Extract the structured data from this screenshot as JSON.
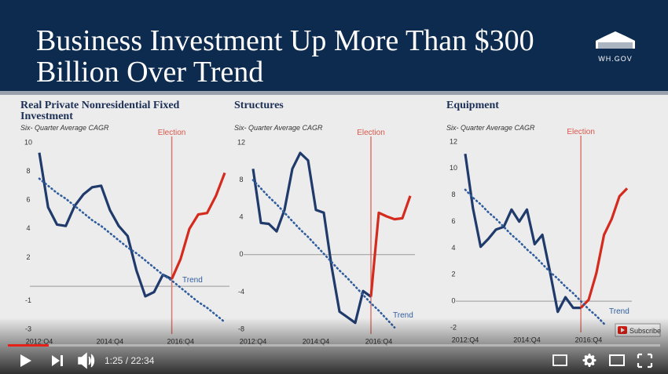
{
  "title": [
    "Business Investment Up More Than $300",
    "Billion Over Trend"
  ],
  "logo": "WH.GOV",
  "chart_data": [
    {
      "type": "line",
      "title": "Real Private Nonresidential Fixed Investment",
      "subtitle": "Six- Quarter Average CAGR",
      "categories": [
        "2012:Q4",
        null,
        null,
        null,
        null,
        null,
        null,
        null,
        "2014:Q4",
        null,
        null,
        null,
        null,
        null,
        null,
        null,
        "2016:Q4",
        null,
        null,
        null,
        null,
        null
      ],
      "ylim": [
        -3,
        10
      ],
      "yticks": [
        10,
        8,
        6,
        4,
        2,
        -1,
        -3
      ],
      "series": [
        {
          "color": "#1f3a6b",
          "values": [
            9.3,
            5.5,
            4.3,
            4.2,
            5.6,
            6.4,
            6.9,
            7.0,
            5.3,
            4.2,
            3.5,
            1.1,
            -0.7,
            -0.4,
            0.8,
            0.5,
            null,
            null,
            null,
            null,
            null,
            null
          ]
        },
        {
          "color": "#d42b1e",
          "values": [
            null,
            null,
            null,
            null,
            null,
            null,
            null,
            null,
            null,
            null,
            null,
            null,
            null,
            null,
            null,
            0.5,
            1.9,
            4.0,
            5.0,
            5.1,
            6.3,
            7.9
          ]
        },
        {
          "color": "#2f5d9e",
          "dotted": true,
          "values": [
            7.5,
            7.0,
            6.5,
            6.1,
            5.6,
            5.1,
            4.6,
            4.2,
            3.7,
            3.2,
            2.7,
            2.3,
            1.8,
            1.3,
            0.8,
            0.4,
            -0.1,
            -0.6,
            -1.1,
            -1.5,
            -2.0,
            -2.5
          ]
        }
      ],
      "election": {
        "label": "Election",
        "index": 15
      },
      "trend_label": "Trend"
    },
    {
      "type": "line",
      "title": "Structures",
      "subtitle": "Six- Quarter Average CAGR",
      "categories": [
        "2012:Q4",
        null,
        null,
        null,
        null,
        null,
        null,
        null,
        "2014:Q4",
        null,
        null,
        null,
        null,
        null,
        null,
        null,
        "2016:Q4",
        null,
        null,
        null,
        null
      ],
      "ylim": [
        -8,
        12
      ],
      "yticks": [
        12,
        8,
        4,
        0,
        -4,
        -8
      ],
      "series": [
        {
          "color": "#1f3a6b",
          "values": [
            9.2,
            3.4,
            3.3,
            2.5,
            4.8,
            9.2,
            10.9,
            10.1,
            4.8,
            4.5,
            -1.3,
            -6.1,
            -6.7,
            -7.3,
            -3.9,
            -4.5,
            null,
            null,
            null,
            null,
            null
          ]
        },
        {
          "color": "#d42b1e",
          "values": [
            null,
            null,
            null,
            null,
            null,
            null,
            null,
            null,
            null,
            null,
            null,
            null,
            null,
            null,
            null,
            -4.5,
            4.5,
            4.1,
            3.8,
            3.9,
            6.3
          ]
        },
        {
          "color": "#2f5d9e",
          "dotted": true,
          "values": [
            8,
            7.1,
            6.2,
            5.4,
            4.5,
            3.6,
            2.7,
            1.9,
            1.0,
            0.1,
            -0.8,
            -1.7,
            -2.5,
            -3.4,
            -4.3,
            -5.2,
            -6.0,
            -6.9,
            -7.8,
            null,
            null
          ]
        }
      ],
      "election": {
        "label": "Election",
        "index": 15
      },
      "trend_label": "Trend"
    },
    {
      "type": "line",
      "title": "Equipment",
      "subtitle": "Six- Quarter Average CAGR",
      "categories": [
        "2012:Q4",
        null,
        null,
        null,
        null,
        null,
        null,
        null,
        "2014:Q4",
        null,
        null,
        null,
        null,
        null,
        null,
        null,
        "2016:Q4",
        null,
        null,
        null,
        null,
        null
      ],
      "ylim": [
        -2,
        12
      ],
      "yticks": [
        12,
        10,
        8,
        6,
        4,
        2,
        0,
        -2
      ],
      "series": [
        {
          "color": "#1f3a6b",
          "values": [
            11.1,
            7.0,
            4.1,
            4.7,
            5.4,
            5.6,
            6.9,
            6.0,
            6.9,
            4.3,
            5.0,
            2.2,
            -0.8,
            0.3,
            -0.5,
            -0.5,
            null,
            null,
            null,
            null,
            null,
            null
          ]
        },
        {
          "color": "#d42b1e",
          "values": [
            null,
            null,
            null,
            null,
            null,
            null,
            null,
            null,
            null,
            null,
            null,
            null,
            null,
            null,
            null,
            -0.5,
            0.1,
            2.1,
            5.0,
            6.2,
            7.9,
            8.5
          ]
        },
        {
          "color": "#2f5d9e",
          "dotted": true,
          "values": [
            8.4,
            7.8,
            7.3,
            6.7,
            6.2,
            5.6,
            5.0,
            4.5,
            3.9,
            3.4,
            2.8,
            2.2,
            1.7,
            1.1,
            0.6,
            0.0,
            -0.6,
            -1.1,
            -1.7,
            null,
            null,
            null
          ]
        }
      ],
      "election": {
        "label": "Election",
        "index": 15
      },
      "trend_label": "Trend"
    }
  ],
  "subscribe": "Subscribe",
  "player": {
    "time": "1:25 / 22:34"
  }
}
